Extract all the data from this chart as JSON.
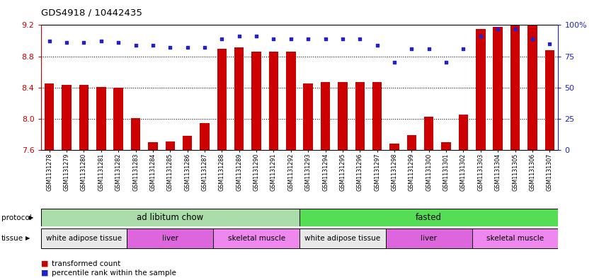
{
  "title": "GDS4918 / 10442435",
  "samples": [
    "GSM1131278",
    "GSM1131279",
    "GSM1131280",
    "GSM1131281",
    "GSM1131282",
    "GSM1131283",
    "GSM1131284",
    "GSM1131285",
    "GSM1131286",
    "GSM1131287",
    "GSM1131288",
    "GSM1131289",
    "GSM1131290",
    "GSM1131291",
    "GSM1131292",
    "GSM1131293",
    "GSM1131294",
    "GSM1131295",
    "GSM1131296",
    "GSM1131297",
    "GSM1131298",
    "GSM1131299",
    "GSM1131300",
    "GSM1131301",
    "GSM1131302",
    "GSM1131303",
    "GSM1131304",
    "GSM1131305",
    "GSM1131306",
    "GSM1131307"
  ],
  "transformed_count": [
    8.45,
    8.43,
    8.43,
    8.41,
    8.4,
    8.01,
    7.7,
    7.71,
    7.78,
    7.95,
    8.9,
    8.91,
    8.86,
    8.86,
    8.86,
    8.45,
    8.47,
    8.47,
    8.47,
    8.47,
    7.68,
    7.79,
    8.03,
    7.7,
    8.05,
    9.15,
    9.18,
    9.19,
    9.2,
    8.88
  ],
  "percentile": [
    87,
    86,
    86,
    87,
    86,
    84,
    84,
    82,
    82,
    82,
    89,
    91,
    91,
    89,
    89,
    89,
    89,
    89,
    89,
    84,
    70,
    81,
    81,
    70,
    81,
    91,
    97,
    97,
    89,
    85
  ],
  "ylim_left": [
    7.6,
    9.2
  ],
  "ylim_right": [
    0,
    100
  ],
  "yticks_left": [
    7.6,
    8.0,
    8.4,
    8.8,
    9.2
  ],
  "yticks_right": [
    0,
    25,
    50,
    75,
    100
  ],
  "bar_color": "#cc0000",
  "dot_color": "#2222cc",
  "protocol_groups": [
    {
      "label": "ad libitum chow",
      "start": 0,
      "end": 14,
      "color": "#aaddaa"
    },
    {
      "label": "fasted",
      "start": 15,
      "end": 29,
      "color": "#55dd55"
    }
  ],
  "tissue_groups": [
    {
      "label": "white adipose tissue",
      "start": 0,
      "end": 4,
      "color": "#e8e8e8"
    },
    {
      "label": "liver",
      "start": 5,
      "end": 9,
      "color": "#dd66dd"
    },
    {
      "label": "skeletal muscle",
      "start": 10,
      "end": 14,
      "color": "#ee88ee"
    },
    {
      "label": "white adipose tissue",
      "start": 15,
      "end": 19,
      "color": "#e8e8e8"
    },
    {
      "label": "liver",
      "start": 20,
      "end": 24,
      "color": "#dd66dd"
    },
    {
      "label": "skeletal muscle",
      "start": 25,
      "end": 29,
      "color": "#ee88ee"
    }
  ]
}
